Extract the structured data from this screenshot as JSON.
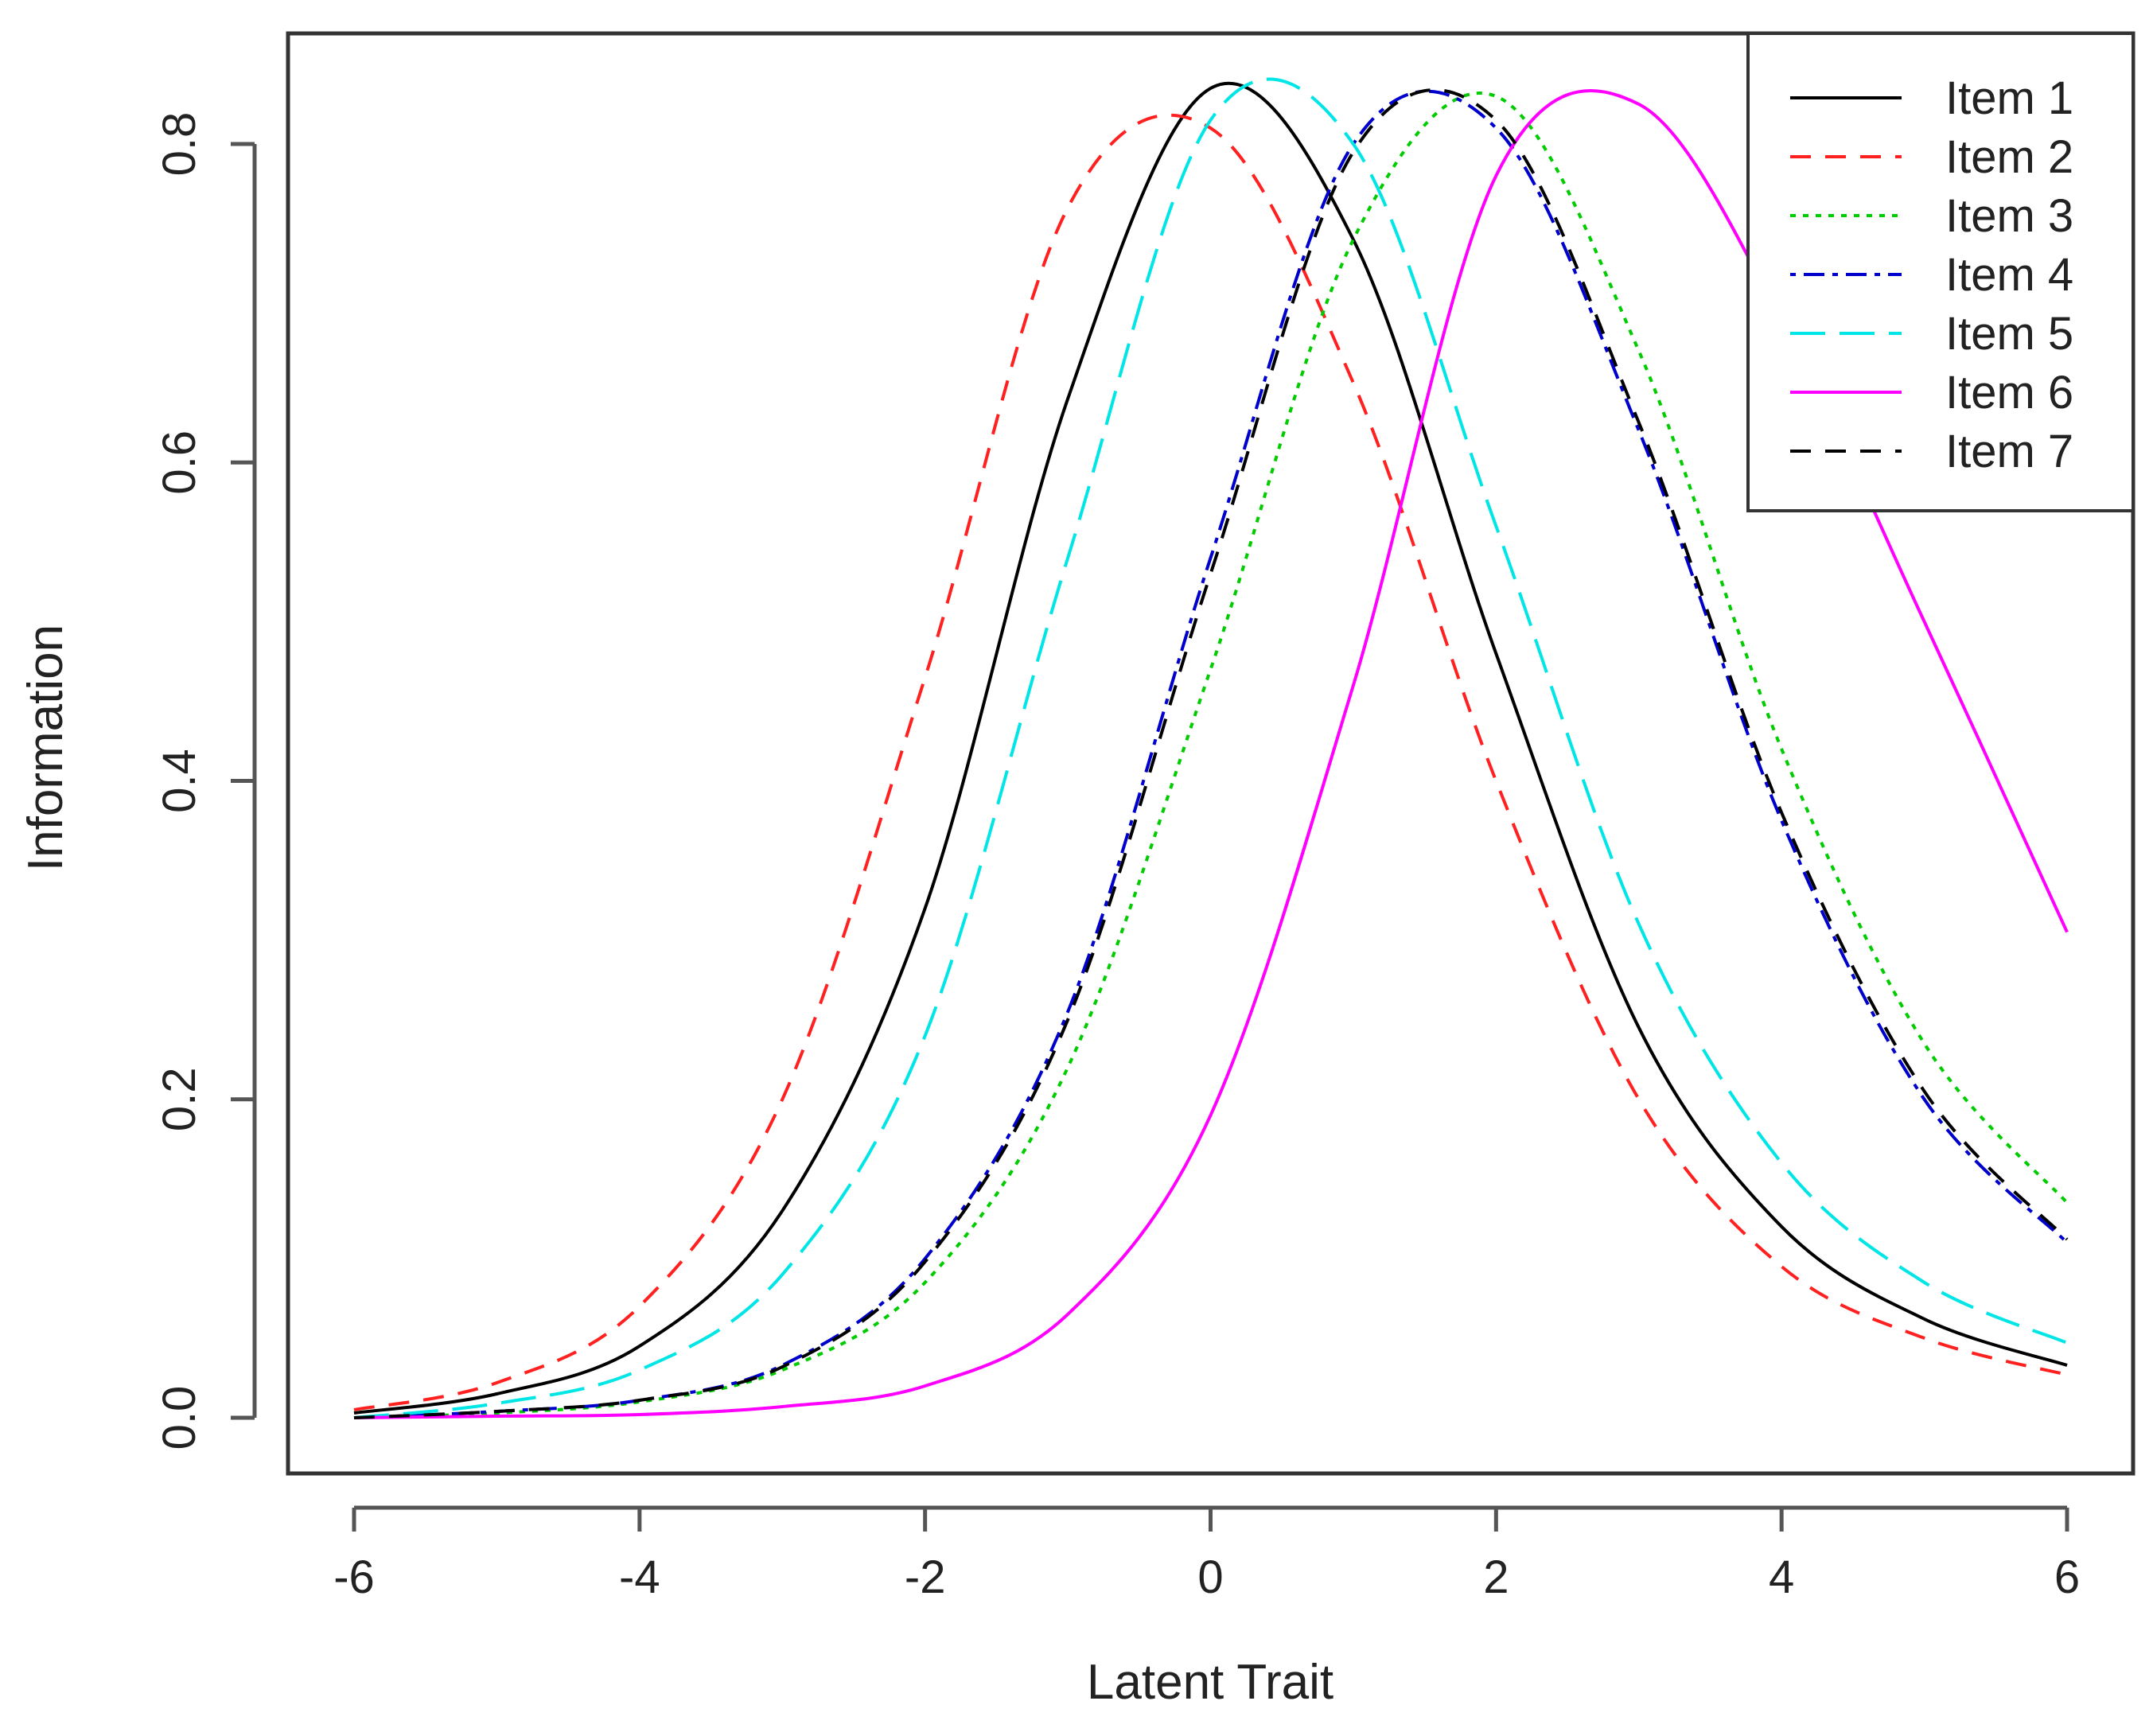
{
  "chart_data": {
    "type": "line",
    "xlabel": "Latent Trait",
    "ylabel": "Information",
    "xlim": [
      -6,
      6
    ],
    "ylim": [
      0,
      0.84
    ],
    "xticks": [
      "-6",
      "-4",
      "-2",
      "0",
      "2",
      "4",
      "6"
    ],
    "yticks": [
      "0.0",
      "0.2",
      "0.4",
      "0.6",
      "0.8"
    ],
    "grid": false,
    "legend_position": "top-right",
    "x": [
      -6,
      -5,
      -4,
      -3,
      -2,
      -1,
      0,
      1,
      2,
      3,
      4,
      5,
      6
    ],
    "series": [
      {
        "name": "Item 1",
        "color": "#000000",
        "dash": "solid",
        "values": [
          0.003,
          0.015,
          0.045,
          0.13,
          0.32,
          0.64,
          0.835,
          0.74,
          0.48,
          0.245,
          0.12,
          0.062,
          0.033
        ]
      },
      {
        "name": "Item 2",
        "color": "#ff2020",
        "dash": "dashed",
        "values": [
          0.005,
          0.022,
          0.07,
          0.2,
          0.465,
          0.76,
          0.81,
          0.65,
          0.4,
          0.2,
          0.095,
          0.05,
          0.027
        ]
      },
      {
        "name": "Item 3",
        "color": "#00cc00",
        "dash": "dotted",
        "values": [
          0.0,
          0.003,
          0.01,
          0.03,
          0.085,
          0.22,
          0.47,
          0.74,
          0.83,
          0.67,
          0.42,
          0.235,
          0.135
        ]
      },
      {
        "name": "Item 4",
        "color": "#0000cc",
        "dash": "dotdash",
        "values": [
          0.0,
          0.004,
          0.011,
          0.033,
          0.1,
          0.255,
          0.54,
          0.8,
          0.81,
          0.62,
          0.375,
          0.2,
          0.11
        ]
      },
      {
        "name": "Item 5",
        "color": "#00e5e5",
        "dash": "longdash",
        "values": [
          0.0,
          0.009,
          0.03,
          0.09,
          0.24,
          0.54,
          0.815,
          0.8,
          0.56,
          0.31,
          0.16,
          0.085,
          0.047
        ]
      },
      {
        "name": "Item 6",
        "color": "#ff00ff",
        "dash": "solid",
        "values": [
          0.0,
          0.001,
          0.002,
          0.007,
          0.02,
          0.065,
          0.19,
          0.46,
          0.78,
          0.825,
          0.69,
          0.5,
          0.305
        ]
      },
      {
        "name": "Item 7",
        "color": "#000000",
        "dash": "dashed",
        "values": [
          0.0,
          0.004,
          0.011,
          0.032,
          0.098,
          0.25,
          0.53,
          0.795,
          0.815,
          0.625,
          0.38,
          0.205,
          0.112
        ]
      }
    ]
  }
}
